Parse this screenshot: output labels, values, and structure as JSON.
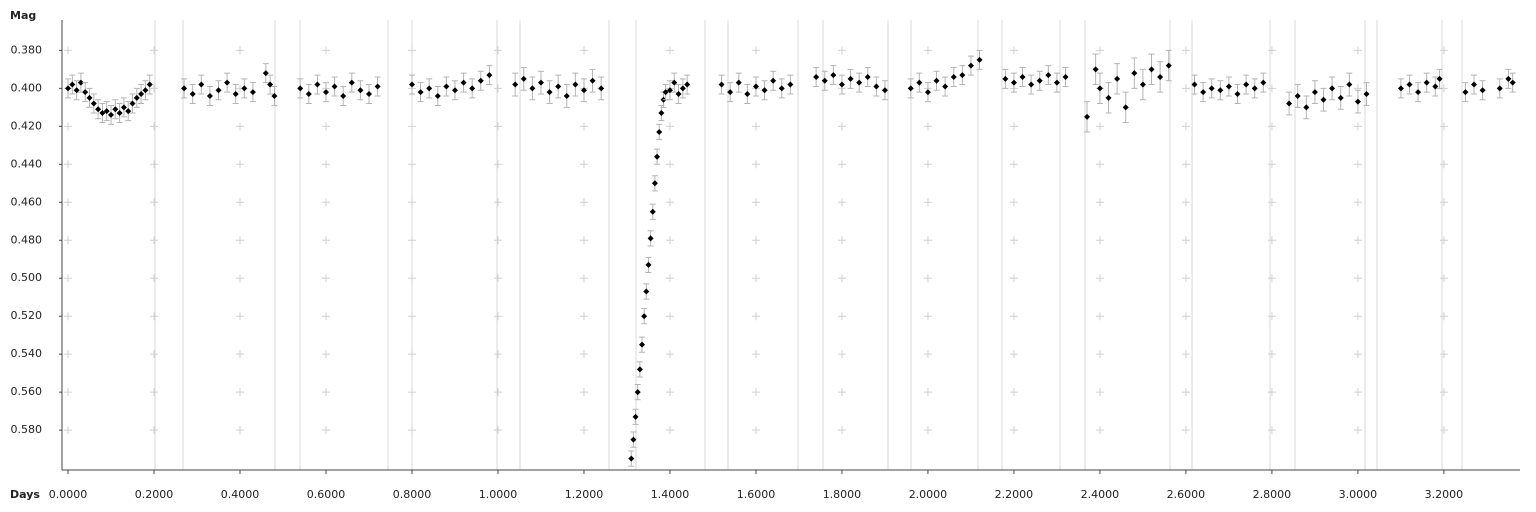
{
  "chart_data": {
    "type": "scatter",
    "y_label": "Mag",
    "x_label": "Days",
    "xlim": [
      -0.014,
      3.377
    ],
    "ylim": [
      0.364,
      0.601
    ],
    "y_inverted": true,
    "grid": "crosses",
    "marker_color": "#000000",
    "error_color": "#b4b4b4",
    "xticks": [
      {
        "value": 0,
        "label": "0.0000"
      },
      {
        "value": 0.2,
        "label": "0.2000"
      },
      {
        "value": 0.4,
        "label": "0.4000"
      },
      {
        "value": 0.6,
        "label": "0.6000"
      },
      {
        "value": 0.8,
        "label": "0.8000"
      },
      {
        "value": 1.0,
        "label": "1.0000"
      },
      {
        "value": 1.2,
        "label": "1.2000"
      },
      {
        "value": 1.4,
        "label": "1.4000"
      },
      {
        "value": 1.6,
        "label": "1.6000"
      },
      {
        "value": 1.8,
        "label": "1.8000"
      },
      {
        "value": 2.0,
        "label": "2.0000"
      },
      {
        "value": 2.2,
        "label": "2.2000"
      },
      {
        "value": 2.4,
        "label": "2.4000"
      },
      {
        "value": 2.6,
        "label": "2.6000"
      },
      {
        "value": 2.8,
        "label": "2.8000"
      },
      {
        "value": 3.0,
        "label": "3.0000"
      },
      {
        "value": 3.2,
        "label": "3.2000"
      }
    ],
    "yticks": [
      {
        "value": 0.38,
        "label": "0.380"
      },
      {
        "value": 0.4,
        "label": "0.400"
      },
      {
        "value": 0.42,
        "label": "0.420"
      },
      {
        "value": 0.44,
        "label": "0.440"
      },
      {
        "value": 0.46,
        "label": "0.460"
      },
      {
        "value": 0.48,
        "label": "0.480"
      },
      {
        "value": 0.5,
        "label": "0.500"
      },
      {
        "value": 0.52,
        "label": "0.520"
      },
      {
        "value": 0.54,
        "label": "0.540"
      },
      {
        "value": 0.56,
        "label": "0.560"
      },
      {
        "value": 0.58,
        "label": "0.580"
      }
    ],
    "x": [
      0,
      0.01,
      0.02,
      0.03,
      0.04,
      0.05,
      0.06,
      0.07,
      0.08,
      0.09,
      0.1,
      0.11,
      0.12,
      0.13,
      0.14,
      0.15,
      0.16,
      0.17,
      0.18,
      0.19,
      0.27,
      0.29,
      0.31,
      0.33,
      0.35,
      0.37,
      0.39,
      0.41,
      0.43,
      0.46,
      0.47,
      0.48,
      0.54,
      0.56,
      0.58,
      0.6,
      0.62,
      0.64,
      0.66,
      0.68,
      0.7,
      0.72,
      0.8,
      0.82,
      0.84,
      0.86,
      0.88,
      0.9,
      0.92,
      0.94,
      0.96,
      0.98,
      1.04,
      1.06,
      1.08,
      1.1,
      1.12,
      1.14,
      1.16,
      1.18,
      1.2,
      1.22,
      1.24,
      1.31,
      1.315,
      1.32,
      1.325,
      1.33,
      1.335,
      1.34,
      1.345,
      1.35,
      1.355,
      1.36,
      1.365,
      1.37,
      1.375,
      1.38,
      1.385,
      1.39,
      1.4,
      1.41,
      1.42,
      1.43,
      1.44,
      1.52,
      1.54,
      1.56,
      1.58,
      1.6,
      1.62,
      1.64,
      1.66,
      1.68,
      1.74,
      1.76,
      1.78,
      1.8,
      1.82,
      1.84,
      1.86,
      1.88,
      1.9,
      1.96,
      1.98,
      2.0,
      2.02,
      2.04,
      2.06,
      2.08,
      2.1,
      2.12,
      2.18,
      2.2,
      2.22,
      2.24,
      2.26,
      2.28,
      2.3,
      2.32,
      2.37,
      2.39,
      2.4,
      2.42,
      2.44,
      2.46,
      2.48,
      2.5,
      2.52,
      2.54,
      2.56,
      2.62,
      2.64,
      2.66,
      2.68,
      2.7,
      2.72,
      2.74,
      2.76,
      2.78,
      2.84,
      2.86,
      2.88,
      2.9,
      2.92,
      2.94,
      2.96,
      2.98,
      3.0,
      3.02,
      3.1,
      3.12,
      3.14,
      3.16,
      3.18,
      3.19,
      3.25,
      3.27,
      3.29,
      3.33,
      3.35,
      3.36
    ],
    "values": [
      0.4,
      0.398,
      0.401,
      0.397,
      0.402,
      0.405,
      0.408,
      0.411,
      0.413,
      0.412,
      0.414,
      0.411,
      0.413,
      0.41,
      0.412,
      0.408,
      0.405,
      0.403,
      0.401,
      0.398,
      0.4,
      0.403,
      0.398,
      0.404,
      0.401,
      0.397,
      0.403,
      0.4,
      0.402,
      0.392,
      0.398,
      0.404,
      0.4,
      0.403,
      0.398,
      0.402,
      0.399,
      0.404,
      0.397,
      0.401,
      0.403,
      0.399,
      0.398,
      0.402,
      0.4,
      0.404,
      0.399,
      0.401,
      0.397,
      0.4,
      0.396,
      0.393,
      0.398,
      0.395,
      0.4,
      0.397,
      0.402,
      0.399,
      0.404,
      0.398,
      0.401,
      0.396,
      0.4,
      0.595,
      0.585,
      0.573,
      0.56,
      0.548,
      0.535,
      0.52,
      0.507,
      0.493,
      0.479,
      0.465,
      0.45,
      0.436,
      0.423,
      0.413,
      0.406,
      0.402,
      0.401,
      0.397,
      0.403,
      0.4,
      0.398,
      0.398,
      0.402,
      0.397,
      0.403,
      0.399,
      0.401,
      0.396,
      0.4,
      0.398,
      0.394,
      0.396,
      0.393,
      0.398,
      0.395,
      0.397,
      0.394,
      0.399,
      0.401,
      0.4,
      0.397,
      0.402,
      0.396,
      0.399,
      0.394,
      0.393,
      0.388,
      0.385,
      0.395,
      0.397,
      0.394,
      0.398,
      0.396,
      0.393,
      0.397,
      0.394,
      0.415,
      0.39,
      0.4,
      0.405,
      0.395,
      0.41,
      0.392,
      0.398,
      0.39,
      0.394,
      0.388,
      0.398,
      0.402,
      0.4,
      0.401,
      0.399,
      0.403,
      0.398,
      0.4,
      0.397,
      0.408,
      0.404,
      0.41,
      0.402,
      0.406,
      0.4,
      0.405,
      0.398,
      0.407,
      0.403,
      0.4,
      0.398,
      0.402,
      0.397,
      0.399,
      0.395,
      0.402,
      0.398,
      0.401,
      0.4,
      0.395,
      0.397
    ],
    "errors": [
      0.005,
      0.005,
      0.005,
      0.005,
      0.005,
      0.005,
      0.005,
      0.005,
      0.005,
      0.005,
      0.005,
      0.005,
      0.005,
      0.005,
      0.005,
      0.005,
      0.005,
      0.005,
      0.005,
      0.005,
      0.005,
      0.005,
      0.005,
      0.005,
      0.005,
      0.005,
      0.005,
      0.005,
      0.005,
      0.005,
      0.005,
      0.005,
      0.005,
      0.005,
      0.005,
      0.005,
      0.005,
      0.005,
      0.005,
      0.005,
      0.005,
      0.005,
      0.005,
      0.005,
      0.005,
      0.005,
      0.005,
      0.005,
      0.005,
      0.005,
      0.005,
      0.005,
      0.006,
      0.006,
      0.006,
      0.006,
      0.006,
      0.006,
      0.006,
      0.006,
      0.006,
      0.006,
      0.006,
      0.004,
      0.004,
      0.004,
      0.004,
      0.004,
      0.004,
      0.004,
      0.004,
      0.004,
      0.004,
      0.004,
      0.004,
      0.004,
      0.004,
      0.004,
      0.004,
      0.004,
      0.005,
      0.005,
      0.005,
      0.005,
      0.005,
      0.005,
      0.005,
      0.005,
      0.005,
      0.005,
      0.005,
      0.005,
      0.005,
      0.005,
      0.005,
      0.005,
      0.005,
      0.005,
      0.005,
      0.005,
      0.005,
      0.005,
      0.005,
      0.005,
      0.005,
      0.005,
      0.005,
      0.005,
      0.005,
      0.005,
      0.005,
      0.005,
      0.005,
      0.005,
      0.005,
      0.005,
      0.005,
      0.005,
      0.005,
      0.005,
      0.008,
      0.008,
      0.008,
      0.008,
      0.008,
      0.008,
      0.008,
      0.008,
      0.008,
      0.008,
      0.008,
      0.005,
      0.005,
      0.005,
      0.005,
      0.005,
      0.005,
      0.005,
      0.005,
      0.005,
      0.006,
      0.006,
      0.006,
      0.006,
      0.006,
      0.006,
      0.006,
      0.006,
      0.006,
      0.006,
      0.005,
      0.005,
      0.005,
      0.005,
      0.005,
      0.005,
      0.005,
      0.005,
      0.005,
      0.005,
      0.005,
      0.005
    ]
  }
}
